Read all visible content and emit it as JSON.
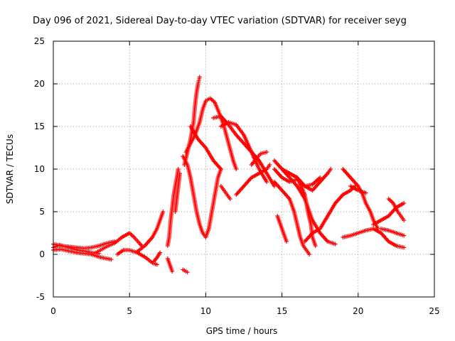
{
  "chart_data": {
    "type": "scatter",
    "title": "Day 096 of 2021, Sidereal Day-to-day VTEC variation (SDTVAR) for receiver seyg",
    "xlabel": "GPS time / hours",
    "ylabel": "SDTVAR / TECUs",
    "xlim": [
      0,
      25
    ],
    "ylim": [
      -5,
      25
    ],
    "xticks": [
      0,
      5,
      10,
      15,
      20,
      25
    ],
    "yticks": [
      -5,
      0,
      5,
      10,
      15,
      20,
      25
    ],
    "grid": true,
    "marker": "+",
    "color": "#ff0000",
    "series": [
      {
        "name": "s1",
        "points": [
          [
            0,
            0.5
          ],
          [
            0.5,
            0.6
          ],
          [
            1,
            0.4
          ],
          [
            1.5,
            0.2
          ],
          [
            2,
            0.1
          ],
          [
            2.5,
            0.0
          ],
          [
            3,
            -0.3
          ],
          [
            3.5,
            -0.5
          ],
          [
            3.8,
            -0.6
          ]
        ]
      },
      {
        "name": "s2",
        "points": [
          [
            0,
            1.2
          ],
          [
            0.5,
            1.0
          ],
          [
            1,
            0.9
          ],
          [
            1.5,
            0.8
          ],
          [
            2,
            0.7
          ],
          [
            2.5,
            0.8
          ],
          [
            3,
            1.0
          ],
          [
            3.5,
            1.3
          ],
          [
            4,
            1.5
          ]
        ]
      },
      {
        "name": "s3",
        "points": [
          [
            0,
            0.8
          ],
          [
            0.4,
            1.1
          ],
          [
            0.8,
            0.9
          ],
          [
            1.2,
            0.7
          ],
          [
            1.6,
            0.5
          ],
          [
            2,
            0.4
          ],
          [
            2.5,
            0.2
          ],
          [
            3,
            0.1
          ]
        ]
      },
      {
        "name": "s4",
        "points": [
          [
            2.8,
            0.2
          ],
          [
            3.2,
            0.6
          ],
          [
            3.6,
            1.0
          ],
          [
            4,
            1.3
          ]
        ]
      },
      {
        "name": "s5",
        "points": [
          [
            4,
            1.3
          ],
          [
            4.5,
            2.0
          ],
          [
            5,
            2.5
          ],
          [
            5.3,
            2.0
          ],
          [
            5.6,
            1.4
          ],
          [
            5.8,
            1.0
          ]
        ]
      },
      {
        "name": "s6",
        "points": [
          [
            4.2,
            0.0
          ],
          [
            4.6,
            0.5
          ],
          [
            5,
            0.5
          ],
          [
            5.5,
            0.2
          ],
          [
            6,
            -0.3
          ],
          [
            6.5,
            -1.0
          ],
          [
            6.8,
            -1.2
          ]
        ]
      },
      {
        "name": "s7",
        "points": [
          [
            5.5,
            0.3
          ],
          [
            6,
            1.0
          ],
          [
            6.5,
            2.0
          ],
          [
            6.8,
            3.0
          ],
          [
            7.0,
            4.0
          ],
          [
            7.2,
            5.0
          ]
        ]
      },
      {
        "name": "s8",
        "points": [
          [
            6.6,
            -0.8
          ],
          [
            6.8,
            -0.4
          ],
          [
            7.0,
            0.2
          ]
        ]
      },
      {
        "name": "s9",
        "points": [
          [
            7.5,
            1.0
          ],
          [
            7.6,
            2.0
          ],
          [
            7.7,
            4.0
          ],
          [
            7.8,
            5.5
          ],
          [
            7.9,
            7.0
          ],
          [
            8.0,
            8.0
          ],
          [
            8.1,
            9.0
          ],
          [
            8.2,
            10.0
          ]
        ]
      },
      {
        "name": "s10",
        "points": [
          [
            7.5,
            -0.5
          ],
          [
            7.6,
            -1.0
          ],
          [
            7.7,
            -1.5
          ],
          [
            7.8,
            -2.0
          ]
        ]
      },
      {
        "name": "s11",
        "points": [
          [
            8.0,
            5.0
          ],
          [
            8.1,
            6.5
          ],
          [
            8.2,
            8.0
          ],
          [
            8.3,
            9.5
          ]
        ]
      },
      {
        "name": "s12",
        "points": [
          [
            8.5,
            -1.8
          ],
          [
            8.7,
            -2.0
          ],
          [
            8.8,
            -2.1
          ]
        ]
      },
      {
        "name": "s13",
        "points": [
          [
            8.6,
            10.5
          ],
          [
            8.8,
            12.0
          ],
          [
            9.0,
            13.5
          ],
          [
            9.2,
            15.5
          ],
          [
            9.3,
            17.5
          ],
          [
            9.4,
            19.0
          ],
          [
            9.5,
            20.0
          ],
          [
            9.6,
            20.8
          ]
        ]
      },
      {
        "name": "s14",
        "points": [
          [
            8.7,
            12.0
          ],
          [
            9.0,
            13.0
          ],
          [
            9.3,
            14.0
          ],
          [
            9.6,
            15.5
          ],
          [
            9.8,
            17.0
          ],
          [
            10.0,
            18.0
          ],
          [
            10.3,
            18.3
          ],
          [
            10.6,
            17.8
          ],
          [
            10.9,
            16.5
          ],
          [
            11.2,
            15.0
          ],
          [
            11.5,
            13.0
          ],
          [
            11.8,
            11.0
          ],
          [
            12.0,
            10.0
          ]
        ]
      },
      {
        "name": "s15",
        "points": [
          [
            8.5,
            11.5
          ],
          [
            8.8,
            10.5
          ],
          [
            9.0,
            9.0
          ],
          [
            9.2,
            7.0
          ],
          [
            9.4,
            5.0
          ],
          [
            9.6,
            3.5
          ],
          [
            9.8,
            2.5
          ],
          [
            10.0,
            2.0
          ],
          [
            10.2,
            3.0
          ],
          [
            10.4,
            5.0
          ],
          [
            10.6,
            7.0
          ],
          [
            10.8,
            9.0
          ],
          [
            11.0,
            10.0
          ]
        ]
      },
      {
        "name": "s16",
        "points": [
          [
            9.0,
            15.0
          ],
          [
            9.5,
            13.5
          ],
          [
            10.0,
            12.5
          ],
          [
            10.5,
            11.0
          ],
          [
            11.0,
            10.0
          ]
        ]
      },
      {
        "name": "s17",
        "points": [
          [
            10.5,
            16.0
          ],
          [
            11.0,
            16.2
          ],
          [
            11.5,
            15.2
          ],
          [
            12.0,
            14.0
          ],
          [
            12.5,
            13.0
          ],
          [
            13.0,
            12.0
          ],
          [
            13.5,
            11.0
          ],
          [
            14.0,
            9.5
          ],
          [
            14.5,
            8.0
          ]
        ]
      },
      {
        "name": "s18",
        "points": [
          [
            11.0,
            15.0
          ],
          [
            11.5,
            15.5
          ],
          [
            12.0,
            15.2
          ],
          [
            12.5,
            14.0
          ],
          [
            13.0,
            12.0
          ],
          [
            13.5,
            10.0
          ],
          [
            14.0,
            8.5
          ]
        ]
      },
      {
        "name": "s19",
        "points": [
          [
            11.0,
            8.0
          ],
          [
            11.2,
            7.5
          ],
          [
            11.4,
            7.0
          ],
          [
            11.6,
            6.5
          ]
        ]
      },
      {
        "name": "s20",
        "points": [
          [
            12.0,
            7.0
          ],
          [
            12.5,
            8.0
          ],
          [
            13.0,
            9.0
          ],
          [
            13.5,
            9.5
          ],
          [
            14.0,
            10.0
          ],
          [
            14.2,
            10.5
          ]
        ]
      },
      {
        "name": "s21",
        "points": [
          [
            13.0,
            10.5
          ],
          [
            13.3,
            11.2
          ],
          [
            13.6,
            11.8
          ],
          [
            14.0,
            12.0
          ]
        ]
      },
      {
        "name": "s22",
        "points": [
          [
            14.5,
            11.0
          ],
          [
            15.0,
            10.0
          ],
          [
            15.5,
            9.0
          ],
          [
            16.0,
            8.0
          ],
          [
            16.5,
            6.5
          ],
          [
            17.0,
            4.0
          ],
          [
            17.5,
            2.5
          ],
          [
            18.0,
            1.5
          ],
          [
            18.5,
            1.2
          ]
        ]
      },
      {
        "name": "s23",
        "points": [
          [
            14.5,
            10.0
          ],
          [
            15.0,
            9.0
          ],
          [
            15.5,
            8.5
          ],
          [
            16.0,
            8.8
          ],
          [
            16.5,
            8.0
          ],
          [
            17.0,
            8.2
          ],
          [
            17.5,
            9.0
          ]
        ]
      },
      {
        "name": "s24",
        "points": [
          [
            14.5,
            8.5
          ],
          [
            15.0,
            7.5
          ],
          [
            15.5,
            6.5
          ],
          [
            15.8,
            5.0
          ],
          [
            16.0,
            3.5
          ],
          [
            16.2,
            2.0
          ],
          [
            16.4,
            1.0
          ],
          [
            16.6,
            0.5
          ],
          [
            16.8,
            0.0
          ]
        ]
      },
      {
        "name": "s25",
        "points": [
          [
            15.0,
            10.0
          ],
          [
            15.5,
            9.5
          ],
          [
            16.0,
            9.0
          ],
          [
            16.5,
            7.0
          ],
          [
            16.7,
            5.0
          ],
          [
            16.9,
            3.5
          ],
          [
            17.0,
            2.0
          ],
          [
            17.2,
            1.0
          ]
        ]
      },
      {
        "name": "s26",
        "points": [
          [
            15.5,
            9.5
          ],
          [
            16.0,
            9.0
          ],
          [
            16.5,
            8.0
          ],
          [
            17.0,
            7.5
          ],
          [
            17.5,
            8.5
          ],
          [
            18.0,
            9.5
          ],
          [
            18.2,
            10.0
          ]
        ]
      },
      {
        "name": "s27",
        "points": [
          [
            14.7,
            4.5
          ],
          [
            14.9,
            3.5
          ],
          [
            15.1,
            2.5
          ],
          [
            15.3,
            1.5
          ]
        ]
      },
      {
        "name": "s28",
        "points": [
          [
            16.5,
            1.5
          ],
          [
            17.0,
            2.5
          ],
          [
            17.5,
            3.0
          ],
          [
            18.0,
            4.5
          ],
          [
            18.5,
            6.0
          ],
          [
            19.0,
            7.0
          ],
          [
            19.5,
            7.5
          ],
          [
            19.8,
            8.0
          ]
        ]
      },
      {
        "name": "s29",
        "points": [
          [
            19.0,
            10.0
          ],
          [
            19.5,
            9.0
          ],
          [
            20.0,
            8.0
          ],
          [
            20.3,
            7.0
          ],
          [
            20.5,
            6.0
          ],
          [
            20.8,
            5.0
          ],
          [
            21.0,
            4.0
          ],
          [
            21.3,
            3.0
          ]
        ]
      },
      {
        "name": "s30",
        "points": [
          [
            19.5,
            8.0
          ],
          [
            20.0,
            7.5
          ],
          [
            20.5,
            7.2
          ]
        ]
      },
      {
        "name": "s31",
        "points": [
          [
            19.0,
            2.0
          ],
          [
            19.5,
            2.2
          ],
          [
            20.0,
            2.5
          ],
          [
            20.5,
            2.8
          ],
          [
            21.0,
            3.0
          ],
          [
            21.5,
            2.5
          ],
          [
            22.0,
            1.5
          ],
          [
            22.5,
            1.0
          ],
          [
            23.0,
            0.8
          ]
        ]
      },
      {
        "name": "s32",
        "points": [
          [
            21.0,
            3.5
          ],
          [
            21.5,
            4.0
          ],
          [
            22.0,
            4.5
          ],
          [
            22.5,
            5.5
          ],
          [
            23.0,
            6.0
          ]
        ]
      },
      {
        "name": "s33",
        "points": [
          [
            21.5,
            3.0
          ],
          [
            22.0,
            2.8
          ],
          [
            22.5,
            2.5
          ],
          [
            23.0,
            2.2
          ]
        ]
      },
      {
        "name": "s34",
        "points": [
          [
            22.0,
            6.5
          ],
          [
            22.3,
            6.0
          ],
          [
            22.6,
            5.0
          ],
          [
            22.8,
            4.5
          ],
          [
            23.0,
            4.0
          ]
        ]
      }
    ]
  }
}
